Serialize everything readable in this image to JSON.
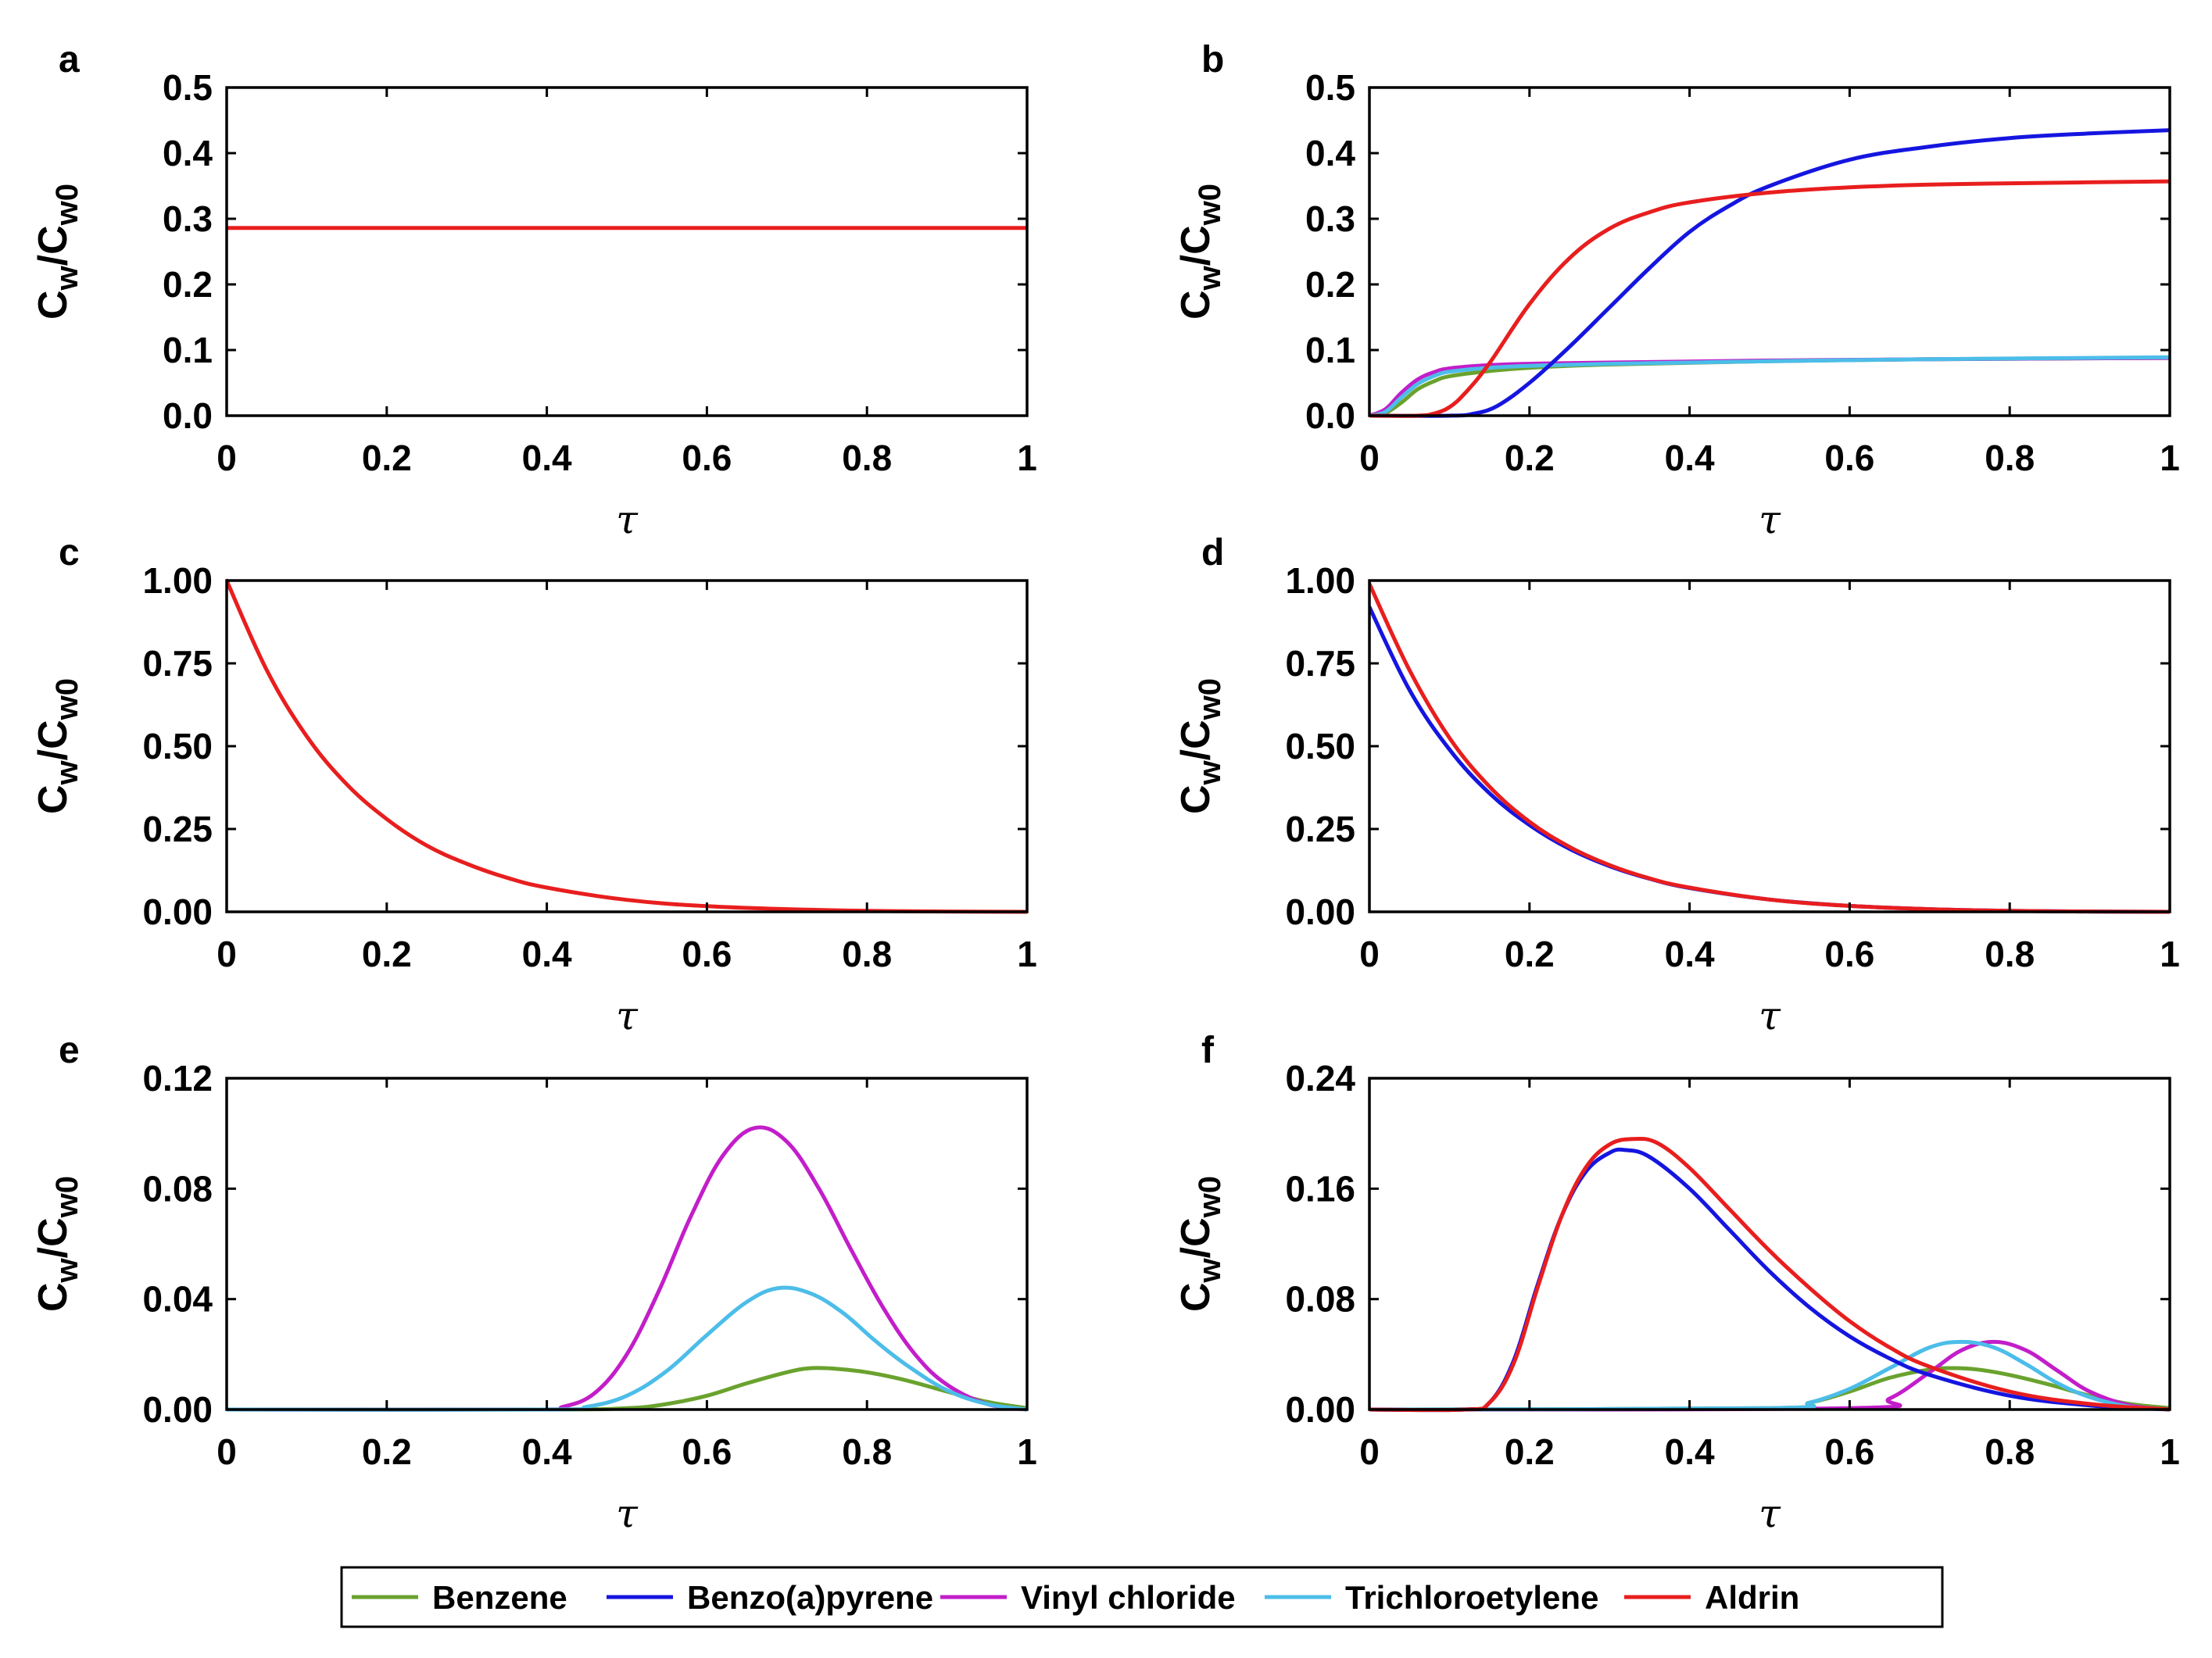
{
  "legend": [
    {
      "name": "Benzene",
      "color": "#6aa22e"
    },
    {
      "name": "Benzo(a)pyrene",
      "color": "#1515e0"
    },
    {
      "name": "Vinyl chloride",
      "color": "#c21ec9"
    },
    {
      "name": "Trichloroetylene",
      "color": "#4cbde9"
    },
    {
      "name": "Aldrin",
      "color": "#e81e1e"
    }
  ],
  "chart_data": [
    {
      "panel": "a",
      "type": "line",
      "ylabel": "Cw/Cw0",
      "ylabel_main": "C",
      "ylabel_sub1": "w",
      "ylabel_mid": "/C",
      "ylabel_sub2": "w0",
      "xlabel": "τ",
      "xlim": [
        0,
        1
      ],
      "ylim": [
        0,
        0.5
      ],
      "xticks": [
        0,
        0.2,
        0.4,
        0.6,
        0.8,
        1
      ],
      "xtick_labels": [
        "0",
        "0.2",
        "0.4",
        "0.6",
        "0.8",
        "1"
      ],
      "yticks": [
        0,
        0.1,
        0.2,
        0.3,
        0.4,
        0.5
      ],
      "ytick_labels": [
        "0.0",
        "0.1",
        "0.2",
        "0.3",
        "0.4",
        "0.5"
      ],
      "series": [
        {
          "name": "Aldrin",
          "color": "#e81e1e",
          "x": [
            0,
            1
          ],
          "y": [
            0.286,
            0.286
          ]
        }
      ]
    },
    {
      "panel": "b",
      "type": "line",
      "ylabel": "Cw/Cw0",
      "ylabel_main": "C",
      "ylabel_sub1": "w",
      "ylabel_mid": "/C",
      "ylabel_sub2": "w0",
      "xlabel": "τ",
      "xlim": [
        0,
        1
      ],
      "ylim": [
        0,
        0.5
      ],
      "xticks": [
        0,
        0.2,
        0.4,
        0.6,
        0.8,
        1
      ],
      "xtick_labels": [
        "0",
        "0.2",
        "0.4",
        "0.6",
        "0.8",
        "1"
      ],
      "yticks": [
        0,
        0.1,
        0.2,
        0.3,
        0.4,
        0.5
      ],
      "ytick_labels": [
        "0.0",
        "0.1",
        "0.2",
        "0.3",
        "0.4",
        "0.5"
      ],
      "series": [
        {
          "name": "Benzene",
          "color": "#6aa22e",
          "x": [
            0,
            0.02,
            0.04,
            0.06,
            0.08,
            0.1,
            0.15,
            0.2,
            0.3,
            0.5,
            0.7,
            1.0
          ],
          "y": [
            0,
            0.004,
            0.02,
            0.04,
            0.052,
            0.06,
            0.068,
            0.073,
            0.078,
            0.083,
            0.086,
            0.088
          ]
        },
        {
          "name": "Vinyl chloride",
          "color": "#c21ec9",
          "x": [
            0,
            0.02,
            0.04,
            0.06,
            0.08,
            0.1,
            0.15,
            0.2,
            0.3,
            0.5,
            0.7,
            1.0
          ],
          "y": [
            0,
            0.01,
            0.035,
            0.055,
            0.066,
            0.072,
            0.077,
            0.079,
            0.081,
            0.084,
            0.086,
            0.088
          ]
        },
        {
          "name": "Trichloroetylene",
          "color": "#4cbde9",
          "x": [
            0,
            0.02,
            0.04,
            0.06,
            0.08,
            0.1,
            0.15,
            0.2,
            0.3,
            0.5,
            0.7,
            1.0
          ],
          "y": [
            0,
            0.006,
            0.028,
            0.048,
            0.06,
            0.067,
            0.073,
            0.076,
            0.079,
            0.083,
            0.086,
            0.089
          ]
        },
        {
          "name": "Benzo(a)pyrene",
          "color": "#1515e0",
          "x": [
            0,
            0.1,
            0.13,
            0.16,
            0.2,
            0.25,
            0.3,
            0.35,
            0.4,
            0.45,
            0.5,
            0.6,
            0.7,
            0.8,
            0.9,
            1.0
          ],
          "y": [
            0,
            0,
            0.003,
            0.015,
            0.05,
            0.105,
            0.165,
            0.225,
            0.28,
            0.32,
            0.35,
            0.39,
            0.41,
            0.423,
            0.43,
            0.435
          ]
        },
        {
          "name": "Aldrin",
          "color": "#e81e1e",
          "x": [
            0,
            0.06,
            0.08,
            0.1,
            0.12,
            0.15,
            0.2,
            0.25,
            0.3,
            0.35,
            0.4,
            0.5,
            0.6,
            0.7,
            0.8,
            1.0
          ],
          "y": [
            0,
            0,
            0.003,
            0.013,
            0.035,
            0.08,
            0.17,
            0.24,
            0.285,
            0.31,
            0.325,
            0.34,
            0.348,
            0.352,
            0.354,
            0.357
          ]
        }
      ]
    },
    {
      "panel": "c",
      "type": "line",
      "ylabel": "Cw/Cw0",
      "ylabel_main": "C",
      "ylabel_sub1": "w",
      "ylabel_mid": "/C",
      "ylabel_sub2": "w0",
      "xlabel": "τ",
      "xlim": [
        0,
        1
      ],
      "ylim": [
        0,
        1
      ],
      "xticks": [
        0,
        0.2,
        0.4,
        0.6,
        0.8,
        1
      ],
      "xtick_labels": [
        "0",
        "0.2",
        "0.4",
        "0.6",
        "0.8",
        "1"
      ],
      "yticks": [
        0,
        0.25,
        0.5,
        0.75,
        1
      ],
      "ytick_labels": [
        "0.00",
        "0.25",
        "0.50",
        "0.75",
        "1.00"
      ],
      "series": [
        {
          "name": "Aldrin",
          "color": "#e81e1e",
          "x": [
            0,
            0.05,
            0.1,
            0.15,
            0.2,
            0.25,
            0.3,
            0.35,
            0.4,
            0.5,
            0.6,
            0.7,
            0.8,
            0.9,
            1.0
          ],
          "y": [
            1.0,
            0.73,
            0.53,
            0.385,
            0.28,
            0.2,
            0.145,
            0.103,
            0.073,
            0.036,
            0.017,
            0.008,
            0.003,
            0.001,
            0.0
          ]
        }
      ]
    },
    {
      "panel": "d",
      "type": "line",
      "ylabel": "Cw/Cw0",
      "ylabel_main": "C",
      "ylabel_sub1": "w",
      "ylabel_mid": "/C",
      "ylabel_sub2": "w0",
      "xlabel": "τ",
      "xlim": [
        0,
        1
      ],
      "ylim": [
        0,
        1
      ],
      "xticks": [
        0,
        0.2,
        0.4,
        0.6,
        0.8,
        1
      ],
      "xtick_labels": [
        "0",
        "0.2",
        "0.4",
        "0.6",
        "0.8",
        "1"
      ],
      "yticks": [
        0,
        0.25,
        0.5,
        0.75,
        1
      ],
      "ytick_labels": [
        "0.00",
        "0.25",
        "0.50",
        "0.75",
        "1.00"
      ],
      "series": [
        {
          "name": "Benzo(a)pyrene",
          "color": "#1515e0",
          "x": [
            0,
            0.05,
            0.1,
            0.15,
            0.2,
            0.25,
            0.3,
            0.35,
            0.4,
            0.5,
            0.6,
            0.7,
            0.8,
            0.9,
            1.0
          ],
          "y": [
            0.92,
            0.67,
            0.49,
            0.358,
            0.262,
            0.19,
            0.138,
            0.1,
            0.072,
            0.037,
            0.018,
            0.008,
            0.003,
            0.001,
            0.0
          ]
        },
        {
          "name": "Aldrin",
          "color": "#e81e1e",
          "x": [
            0,
            0.05,
            0.1,
            0.15,
            0.2,
            0.25,
            0.3,
            0.35,
            0.4,
            0.5,
            0.6,
            0.7,
            0.8,
            0.9,
            1.0
          ],
          "y": [
            0.99,
            0.73,
            0.525,
            0.378,
            0.272,
            0.196,
            0.141,
            0.101,
            0.073,
            0.037,
            0.018,
            0.008,
            0.003,
            0.001,
            0.0
          ]
        }
      ]
    },
    {
      "panel": "e",
      "type": "line",
      "ylabel": "Cw/Cw0",
      "ylabel_main": "C",
      "ylabel_sub1": "w",
      "ylabel_mid": "/C",
      "ylabel_sub2": "w0",
      "xlabel": "τ",
      "xlim": [
        0,
        1
      ],
      "ylim": [
        0,
        0.12
      ],
      "xticks": [
        0,
        0.2,
        0.4,
        0.6,
        0.8,
        1
      ],
      "xtick_labels": [
        "0",
        "0.2",
        "0.4",
        "0.6",
        "0.8",
        "1"
      ],
      "yticks": [
        0,
        0.04,
        0.08,
        0.12
      ],
      "ytick_labels": [
        "0.00",
        "0.04",
        "0.08",
        "0.12"
      ],
      "series": [
        {
          "name": "Benzene",
          "color": "#6aa22e",
          "x": [
            0,
            0.4,
            0.5,
            0.55,
            0.6,
            0.65,
            0.7,
            0.73,
            0.76,
            0.8,
            0.85,
            0.9,
            0.95,
            1.0
          ],
          "y": [
            0,
            0,
            0.0005,
            0.002,
            0.005,
            0.0095,
            0.0135,
            0.015,
            0.0148,
            0.0135,
            0.0105,
            0.0065,
            0.0028,
            0.0005
          ]
        },
        {
          "name": "Vinyl chloride",
          "color": "#c21ec9",
          "x": [
            0,
            0.38,
            0.42,
            0.46,
            0.5,
            0.54,
            0.58,
            0.62,
            0.66,
            0.7,
            0.74,
            0.78,
            0.82,
            0.86,
            0.9,
            0.95,
            1.0
          ],
          "y": [
            0,
            0,
            0.001,
            0.006,
            0.02,
            0.043,
            0.07,
            0.092,
            0.102,
            0.097,
            0.08,
            0.058,
            0.037,
            0.02,
            0.009,
            0.002,
            0.0
          ]
        },
        {
          "name": "Trichloroetylene",
          "color": "#4cbde9",
          "x": [
            0,
            0.4,
            0.45,
            0.5,
            0.55,
            0.6,
            0.65,
            0.69,
            0.73,
            0.77,
            0.81,
            0.85,
            0.9,
            0.95,
            1.0
          ],
          "y": [
            0,
            0,
            0.001,
            0.005,
            0.014,
            0.027,
            0.039,
            0.044,
            0.042,
            0.035,
            0.025,
            0.016,
            0.007,
            0.002,
            0.0
          ]
        }
      ]
    },
    {
      "panel": "f",
      "type": "line",
      "ylabel": "Cw/Cw0",
      "ylabel_main": "C",
      "ylabel_sub1": "w",
      "ylabel_mid": "/C",
      "ylabel_sub2": "w0",
      "xlabel": "τ",
      "xlim": [
        0,
        1
      ],
      "ylim": [
        0,
        0.24
      ],
      "xticks": [
        0,
        0.2,
        0.4,
        0.6,
        0.8,
        1
      ],
      "xtick_labels": [
        "0",
        "0.2",
        "0.4",
        "0.6",
        "0.8",
        "1"
      ],
      "yticks": [
        0,
        0.08,
        0.16,
        0.24
      ],
      "ytick_labels": [
        "0.00",
        "0.08",
        "0.16",
        "0.24"
      ],
      "series": [
        {
          "name": "Benzene",
          "color": "#6aa22e",
          "x": [
            0,
            0.5,
            0.55,
            0.6,
            0.65,
            0.7,
            0.73,
            0.76,
            0.8,
            0.85,
            0.9,
            0.95,
            1.0
          ],
          "y": [
            0,
            0.001,
            0.005,
            0.013,
            0.023,
            0.029,
            0.03,
            0.029,
            0.025,
            0.018,
            0.01,
            0.004,
            0.001
          ]
        },
        {
          "name": "Vinyl chloride",
          "color": "#c21ec9",
          "x": [
            0,
            0.6,
            0.65,
            0.7,
            0.74,
            0.78,
            0.82,
            0.86,
            0.9,
            0.95,
            1.0
          ],
          "y": [
            0,
            0.001,
            0.008,
            0.027,
            0.043,
            0.049,
            0.043,
            0.028,
            0.013,
            0.003,
            0.0
          ]
        },
        {
          "name": "Trichloroetylene",
          "color": "#4cbde9",
          "x": [
            0,
            0.5,
            0.55,
            0.6,
            0.65,
            0.7,
            0.74,
            0.78,
            0.82,
            0.86,
            0.9,
            0.95,
            1.0
          ],
          "y": [
            0,
            0.001,
            0.005,
            0.015,
            0.03,
            0.045,
            0.049,
            0.045,
            0.033,
            0.019,
            0.009,
            0.002,
            0.0
          ]
        },
        {
          "name": "Benzo(a)pyrene",
          "color": "#1515e0",
          "x": [
            0,
            0.12,
            0.15,
            0.18,
            0.21,
            0.24,
            0.27,
            0.3,
            0.32,
            0.35,
            0.4,
            0.45,
            0.5,
            0.55,
            0.6,
            0.65,
            0.7,
            0.8,
            0.9,
            1.0
          ],
          "y": [
            0,
            0,
            0.005,
            0.035,
            0.09,
            0.14,
            0.172,
            0.186,
            0.188,
            0.183,
            0.16,
            0.13,
            0.1,
            0.074,
            0.053,
            0.037,
            0.025,
            0.01,
            0.003,
            0.0
          ]
        },
        {
          "name": "Aldrin",
          "color": "#e81e1e",
          "x": [
            0,
            0.12,
            0.15,
            0.18,
            0.21,
            0.24,
            0.27,
            0.3,
            0.33,
            0.36,
            0.4,
            0.45,
            0.5,
            0.55,
            0.6,
            0.65,
            0.7,
            0.8,
            0.9,
            1.0
          ],
          "y": [
            0,
            0,
            0.005,
            0.033,
            0.088,
            0.14,
            0.175,
            0.192,
            0.196,
            0.193,
            0.175,
            0.145,
            0.115,
            0.088,
            0.064,
            0.045,
            0.031,
            0.013,
            0.004,
            0.0
          ]
        }
      ]
    }
  ]
}
